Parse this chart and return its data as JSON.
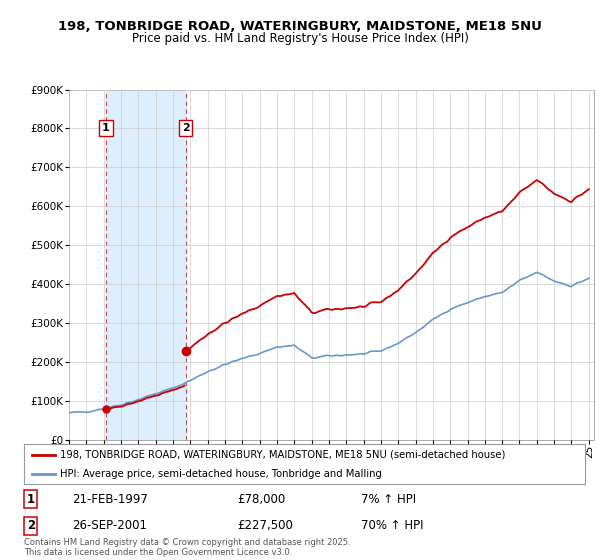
{
  "title": "198, TONBRIDGE ROAD, WATERINGBURY, MAIDSTONE, ME18 5NU",
  "subtitle": "Price paid vs. HM Land Registry's House Price Index (HPI)",
  "legend_line1": "198, TONBRIDGE ROAD, WATERINGBURY, MAIDSTONE, ME18 5NU (semi-detached house)",
  "legend_line2": "HPI: Average price, semi-detached house, Tonbridge and Malling",
  "purchase1_date": "21-FEB-1997",
  "purchase1_price": "£78,000",
  "purchase1_hpi": "7% ↑ HPI",
  "purchase2_date": "26-SEP-2001",
  "purchase2_price": "£227,500",
  "purchase2_hpi": "70% ↑ HPI",
  "footer": "Contains HM Land Registry data © Crown copyright and database right 2025.\nThis data is licensed under the Open Government Licence v3.0.",
  "property_color": "#cc0000",
  "hpi_color": "#6699cc",
  "shade_color": "#ddeeff",
  "purchase1_year": 1997.13,
  "purchase2_year": 2001.73,
  "purchase1_price_val": 78000,
  "purchase2_price_val": 227500,
  "ylim_max": 900000,
  "background_color": "#ffffff",
  "grid_color": "#cccccc",
  "hpi_breakpoints": [
    1995,
    1996,
    1997,
    1998,
    1999,
    2000,
    2001,
    2002,
    2003,
    2004,
    2005,
    2006,
    2007,
    2008,
    2009,
    2010,
    2011,
    2012,
    2013,
    2014,
    2015,
    2016,
    2017,
    2018,
    2019,
    2020,
    2021,
    2022,
    2023,
    2024,
    2025
  ],
  "hpi_values": [
    68000,
    72000,
    80000,
    90000,
    103000,
    118000,
    132000,
    152000,
    175000,
    193000,
    208000,
    222000,
    238000,
    242000,
    210000,
    215000,
    218000,
    220000,
    228000,
    248000,
    275000,
    308000,
    336000,
    352000,
    368000,
    378000,
    408000,
    430000,
    408000,
    395000,
    415000
  ]
}
